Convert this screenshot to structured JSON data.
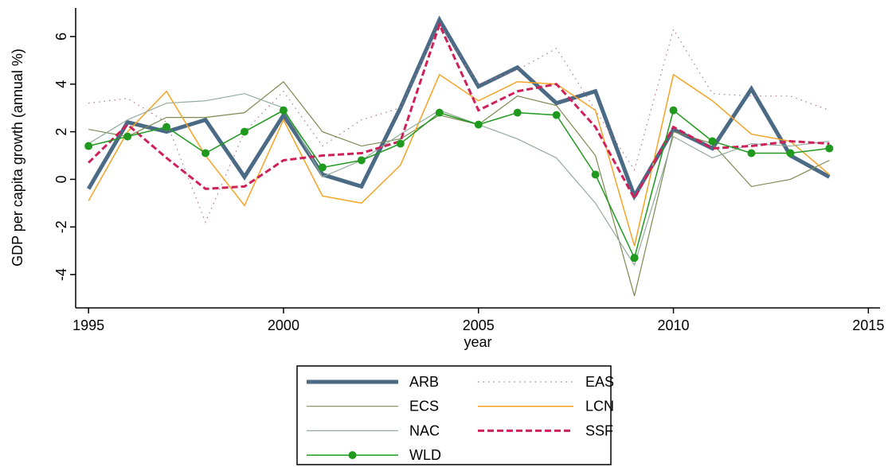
{
  "chart_data": {
    "type": "line",
    "x_label": "year",
    "y_label": "GDP per capita growth (annual %)",
    "x": [
      1995,
      1996,
      1997,
      1998,
      1999,
      2000,
      2001,
      2002,
      2003,
      2004,
      2005,
      2006,
      2007,
      2008,
      2009,
      2010,
      2011,
      2012,
      2013,
      2014
    ],
    "xlim": [
      1994.67,
      2015.3
    ],
    "xticks": [
      1995,
      2000,
      2005,
      2010,
      2015
    ],
    "ylim": [
      -5.4,
      7.2
    ],
    "yticks": [
      6,
      4,
      2,
      0,
      -2,
      -4
    ],
    "series": [
      {
        "name": "ARB",
        "color": "#4b6a86",
        "width": 5,
        "style": "solid",
        "values": [
          -0.4,
          2.4,
          2.0,
          2.5,
          0.1,
          2.7,
          0.2,
          -0.3,
          3.0,
          6.7,
          3.9,
          4.7,
          3.2,
          3.7,
          -0.7,
          2.1,
          1.3,
          3.8,
          1.0,
          0.1
        ]
      },
      {
        "name": "EAS",
        "color": "#b07494",
        "width": 1.2,
        "style": "dotted",
        "values": [
          3.2,
          3.4,
          2.4,
          -1.8,
          2.0,
          3.7,
          1.4,
          2.5,
          3.0,
          6.5,
          4.0,
          4.6,
          5.5,
          2.9,
          0.4,
          6.3,
          3.6,
          3.5,
          3.5,
          2.9
        ]
      },
      {
        "name": "ECS",
        "color": "#7b8a52",
        "width": 1.2,
        "style": "solid",
        "values": [
          2.1,
          1.8,
          2.6,
          2.6,
          2.8,
          4.1,
          2.0,
          1.4,
          1.7,
          2.7,
          2.3,
          3.5,
          3.1,
          1.0,
          -4.9,
          2.0,
          1.5,
          -0.3,
          0.0,
          0.8
        ]
      },
      {
        "name": "LCN",
        "color": "#f5a324",
        "width": 1.5,
        "style": "solid",
        "values": [
          -0.9,
          2.0,
          3.7,
          1.0,
          -1.1,
          2.5,
          -0.7,
          -1.0,
          0.6,
          4.4,
          3.3,
          4.1,
          4.0,
          2.9,
          -2.8,
          4.4,
          3.3,
          1.9,
          1.6,
          0.2
        ]
      },
      {
        "name": "NAC",
        "color": "#93aa9a",
        "width": 1.2,
        "style": "solid",
        "values": [
          1.5,
          2.5,
          3.2,
          3.3,
          3.6,
          3.0,
          0.1,
          0.8,
          1.9,
          2.9,
          2.3,
          1.7,
          0.9,
          -1.0,
          -3.6,
          1.8,
          0.9,
          1.5,
          1.4,
          1.6
        ]
      },
      {
        "name": "SSF",
        "color": "#d0205a",
        "width": 3,
        "style": "dashed",
        "values": [
          0.7,
          2.3,
          0.9,
          -0.4,
          -0.3,
          0.8,
          1.0,
          1.1,
          1.6,
          6.5,
          2.9,
          3.7,
          4.0,
          2.2,
          -0.8,
          2.2,
          1.3,
          1.4,
          1.6,
          1.5
        ]
      },
      {
        "name": "WLD",
        "color": "#1f9a1f",
        "width": 1.5,
        "style": "solid",
        "marker": "circle",
        "values": [
          1.4,
          1.8,
          2.2,
          1.1,
          2.0,
          2.9,
          0.5,
          0.8,
          1.5,
          2.8,
          2.3,
          2.8,
          2.7,
          0.2,
          -3.3,
          2.9,
          1.6,
          1.1,
          1.1,
          1.3
        ]
      }
    ]
  }
}
